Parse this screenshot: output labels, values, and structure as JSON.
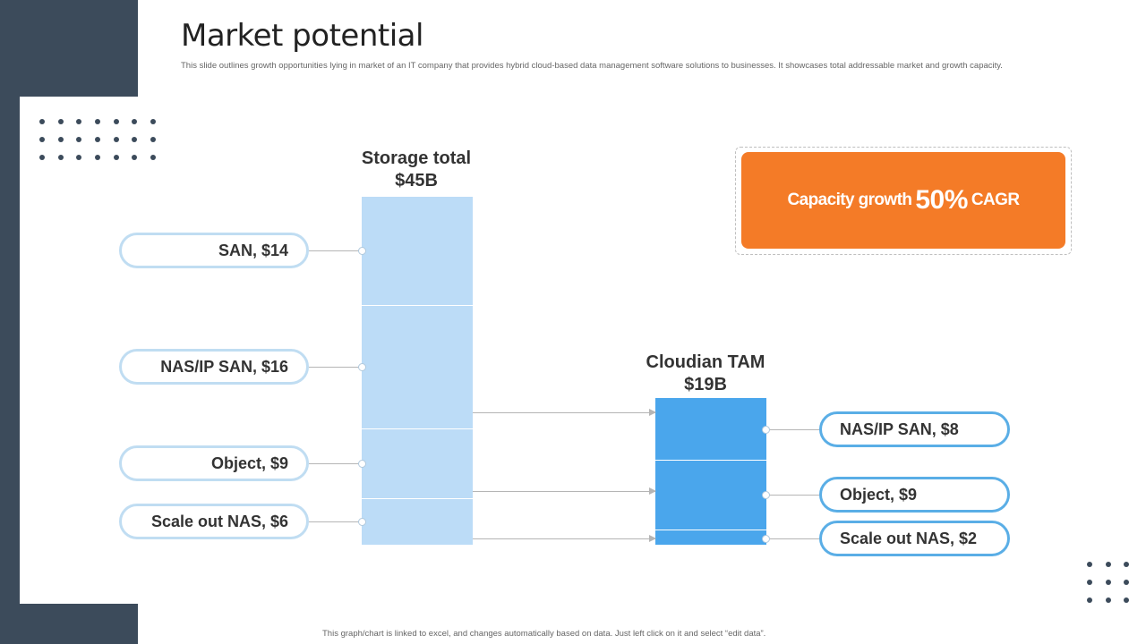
{
  "slide": {
    "title": "Market potential",
    "subtitle": "This slide outlines growth opportunities lying in market of an IT  company that provides hybrid cloud-based data management  software solutions to businesses. It showcases total addressable market and growth capacity.",
    "footer": "This graph/chart is linked to excel, and changes automatically based on data. Just left click on it and select “edit data”."
  },
  "diagram": {
    "storage": {
      "label_line1": "Storage total",
      "label_line2": "$45B",
      "segments": [
        {
          "label": "SAN, $14",
          "value": 14
        },
        {
          "label": "NAS/IP SAN, $16",
          "value": 16
        },
        {
          "label": "Object, $9",
          "value": 9
        },
        {
          "label": "Scale out NAS, $6",
          "value": 6
        }
      ]
    },
    "cloudian": {
      "label_line1": "Cloudian  TAM",
      "label_line2": "$19B",
      "segments": [
        {
          "label": "NAS/IP SAN, $8",
          "value": 8
        },
        {
          "label": "Object, $9",
          "value": 9
        },
        {
          "label": "Scale out NAS, $2",
          "value": 2
        }
      ]
    },
    "cagr": {
      "prefix": "Capacity growth",
      "value": "50%",
      "suffix": "CAGR"
    }
  },
  "colors": {
    "panel": "#3c4b5b",
    "storage_bar": "#bcdcf7",
    "cloudian_bar": "#4aa6ec",
    "cagr_box": "#f47b27"
  }
}
